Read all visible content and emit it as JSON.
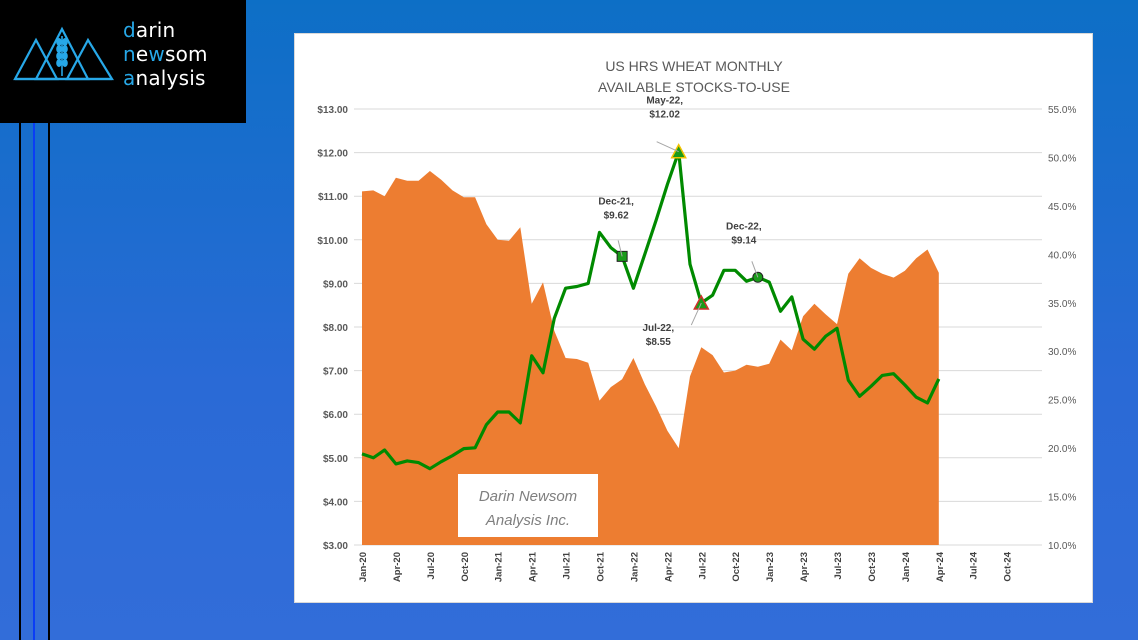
{
  "brand": {
    "line1_first": "d",
    "line1_rest": "arin",
    "line2_first": "n",
    "line2_mid": "e",
    "line2_w": "w",
    "line2_rest": "som",
    "line3_first": "a",
    "line3_rest": "nalysis",
    "accent_color": "#27a8e8",
    "icon": "wheat-mountains-logo-icon"
  },
  "watermark": {
    "line1": "Darin Newsom",
    "line2": "Analysis Inc."
  },
  "colors": {
    "price_line": "#008a00",
    "stocks_area": "#ed7d31",
    "background": "#1f6fd0"
  },
  "chart_data": {
    "type": "area",
    "title": "US HRS WHEAT MONTHLY",
    "subtitle": "AVAILABLE STOCKS-TO-USE",
    "xlabel": "",
    "ylabel": "",
    "y_left_ticks": [
      "$3.00",
      "$4.00",
      "$5.00",
      "$6.00",
      "$7.00",
      "$8.00",
      "$9.00",
      "$10.00",
      "$11.00",
      "$12.00",
      "$13.00"
    ],
    "y_right_ticks": [
      "10.0%",
      "15.0%",
      "20.0%",
      "25.0%",
      "30.0%",
      "35.0%",
      "40.0%",
      "45.0%",
      "50.0%",
      "55.0%"
    ],
    "ylim_left": [
      3,
      13
    ],
    "ylim_right": [
      10,
      55
    ],
    "x_tick_labels": [
      "Jan-20",
      "Apr-20",
      "Jul-20",
      "Oct-20",
      "Jan-21",
      "Apr-21",
      "Jul-21",
      "Oct-21",
      "Jan-22",
      "Apr-22",
      "Jul-22",
      "Oct-22",
      "Jan-23",
      "Apr-23",
      "Jul-23",
      "Oct-23",
      "Jan-24",
      "Apr-24",
      "Jul-24",
      "Oct-24"
    ],
    "x_range_months": 58,
    "grid": true,
    "legend": "none",
    "x": [
      "Jan-20",
      "Feb-20",
      "Mar-20",
      "Apr-20",
      "May-20",
      "Jun-20",
      "Jul-20",
      "Aug-20",
      "Sep-20",
      "Oct-20",
      "Nov-20",
      "Dec-20",
      "Jan-21",
      "Feb-21",
      "Mar-21",
      "Apr-21",
      "May-21",
      "Jun-21",
      "Jul-21",
      "Aug-21",
      "Sep-21",
      "Oct-21",
      "Nov-21",
      "Dec-21",
      "Jan-22",
      "Feb-22",
      "Mar-22",
      "Apr-22",
      "May-22",
      "Jun-22",
      "Jul-22",
      "Aug-22",
      "Sep-22",
      "Oct-22",
      "Nov-22",
      "Dec-22",
      "Jan-23",
      "Feb-23",
      "Mar-23",
      "Apr-23",
      "May-23",
      "Jun-23",
      "Jul-23",
      "Aug-23",
      "Sep-23",
      "Oct-23",
      "Nov-23",
      "Dec-23",
      "Jan-24",
      "Feb-24",
      "Mar-24",
      "Apr-24"
    ],
    "series": [
      {
        "name": "Available Stocks-to-Use (%)",
        "type": "area",
        "axis": "right",
        "values": [
          46.5,
          46.6,
          46.0,
          47.9,
          47.6,
          47.6,
          48.6,
          47.7,
          46.6,
          45.9,
          45.9,
          43.1,
          41.5,
          41.4,
          42.8,
          34.9,
          37.1,
          32.1,
          29.3,
          29.2,
          28.8,
          24.9,
          26.3,
          27.1,
          29.3,
          26.6,
          24.3,
          21.8,
          20.0,
          27.4,
          30.4,
          29.6,
          27.8,
          28.0,
          28.6,
          28.4,
          28.7,
          31.2,
          30.1,
          33.6,
          34.9,
          33.8,
          32.8,
          38.0,
          39.6,
          38.6,
          38.0,
          37.6,
          38.3,
          39.6,
          40.5,
          38.1
        ]
      },
      {
        "name": "HRS Wheat Price ($/bu)",
        "type": "line",
        "axis": "left",
        "values": [
          5.09,
          5.0,
          5.18,
          4.86,
          4.93,
          4.89,
          4.75,
          4.91,
          5.05,
          5.21,
          5.23,
          5.76,
          6.05,
          6.05,
          5.8,
          7.34,
          6.95,
          8.2,
          8.89,
          8.93,
          9.0,
          10.17,
          9.82,
          9.62,
          8.89,
          9.67,
          10.45,
          11.27,
          12.02,
          9.44,
          8.55,
          8.73,
          9.3,
          9.3,
          9.05,
          9.14,
          9.03,
          8.36,
          8.69,
          7.72,
          7.49,
          7.79,
          7.97,
          6.78,
          6.41,
          6.64,
          6.89,
          6.93,
          6.67,
          6.39,
          6.26,
          6.81
        ]
      }
    ],
    "annotations": [
      {
        "x": "Dec-21",
        "value": 9.62,
        "line1": "Dec-21,",
        "line2": "$9.62",
        "marker": "square"
      },
      {
        "x": "May-22",
        "value": 12.02,
        "line1": "May-22,",
        "line2": "$12.02",
        "marker": "triangle-yellow"
      },
      {
        "x": "Jul-22",
        "value": 8.55,
        "line1": "Jul-22,",
        "line2": "$8.55",
        "marker": "triangle-red"
      },
      {
        "x": "Dec-22",
        "value": 9.14,
        "line1": "Dec-22,",
        "line2": "$9.14",
        "marker": "circle"
      }
    ]
  }
}
